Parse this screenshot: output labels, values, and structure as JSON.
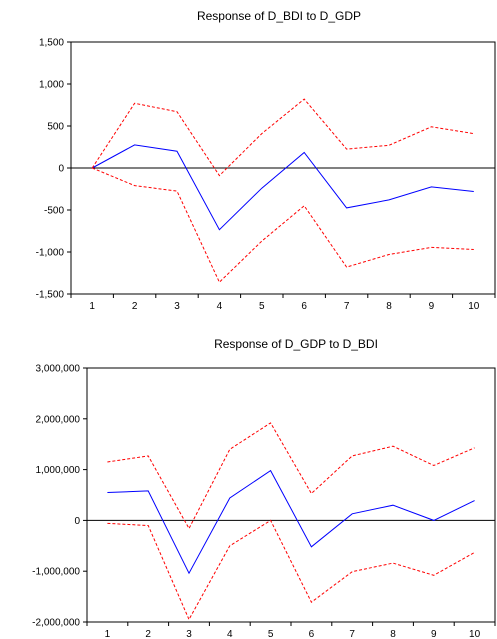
{
  "colors": {
    "response": "#0000ff",
    "band": "#ff0000",
    "axes": "#000000",
    "zero": "#000000"
  },
  "chart_data": [
    {
      "type": "line",
      "title": "Response of D_BDI to D_GDP",
      "xlabel": "",
      "ylabel": "",
      "categories": [
        "1",
        "2",
        "3",
        "4",
        "5",
        "6",
        "7",
        "8",
        "9",
        "10"
      ],
      "ylim": [
        -1500,
        1500
      ],
      "yticks": [
        -1500,
        -1000,
        -500,
        0,
        500,
        1000,
        1500
      ],
      "ytick_labels": [
        "-1,500",
        "-1,000",
        "-500",
        "0",
        "500",
        "1,000",
        "1,500"
      ],
      "grid": false,
      "zero_line": true,
      "series": [
        {
          "role": "response",
          "style": "solid",
          "values": [
            0,
            275,
            200,
            -735,
            -240,
            185,
            -475,
            -380,
            -225,
            -280
          ]
        },
        {
          "role": "upper",
          "style": "dashed",
          "values": [
            0,
            770,
            670,
            -90,
            410,
            820,
            225,
            270,
            490,
            410
          ]
        },
        {
          "role": "lower",
          "style": "dashed",
          "values": [
            0,
            -210,
            -275,
            -1360,
            -870,
            -450,
            -1180,
            -1030,
            -945,
            -970
          ]
        }
      ]
    },
    {
      "type": "line",
      "title": "Response of D_GDP to D_BDI",
      "xlabel": "",
      "ylabel": "",
      "categories": [
        "1",
        "2",
        "3",
        "4",
        "5",
        "6",
        "7",
        "8",
        "9",
        "10"
      ],
      "ylim": [
        -2000000,
        3000000
      ],
      "yticks": [
        -2000000,
        -1000000,
        0,
        1000000,
        2000000,
        3000000
      ],
      "ytick_labels": [
        "-2,000,000",
        "-1,000,000",
        "0",
        "1,000,000",
        "2,000,000",
        "3,000,000"
      ],
      "grid": false,
      "zero_line": true,
      "series": [
        {
          "role": "response",
          "style": "solid",
          "values": [
            550000,
            580000,
            -1040000,
            440000,
            980000,
            -520000,
            130000,
            300000,
            0,
            390000
          ]
        },
        {
          "role": "upper",
          "style": "dashed",
          "values": [
            1150000,
            1270000,
            -160000,
            1400000,
            1920000,
            530000,
            1270000,
            1460000,
            1080000,
            1430000
          ]
        },
        {
          "role": "lower",
          "style": "dashed",
          "values": [
            -60000,
            -100000,
            -1950000,
            -500000,
            0,
            -1610000,
            -1010000,
            -840000,
            -1080000,
            -630000
          ]
        }
      ]
    }
  ]
}
